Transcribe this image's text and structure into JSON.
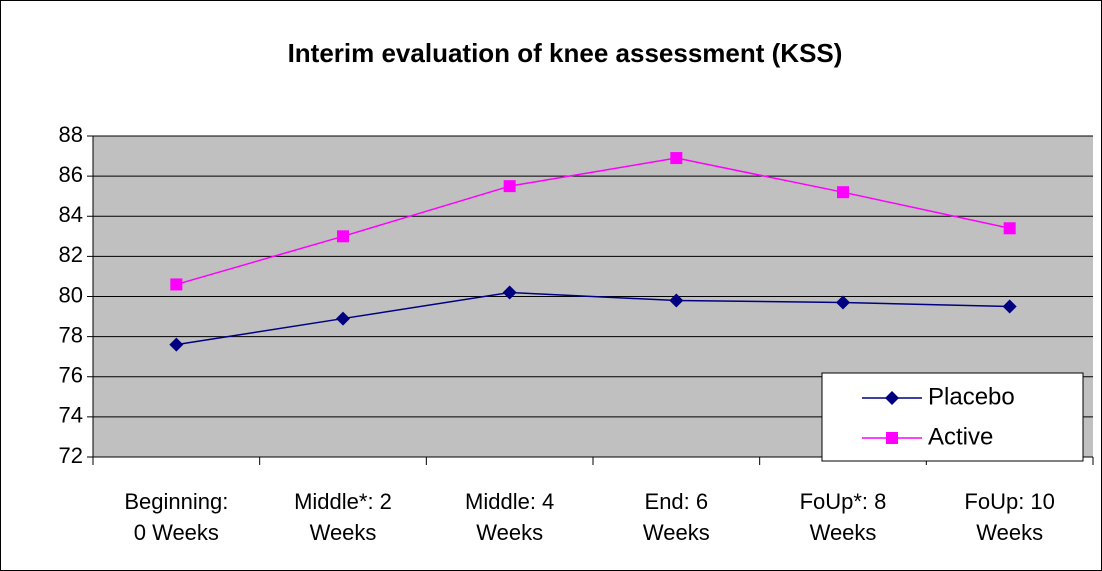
{
  "chart_data": {
    "type": "line",
    "title": "Interim evaluation of knee assessment (KSS)",
    "categories": [
      "Beginning: 0 Weeks",
      "Middle*: 2 Weeks",
      "Middle: 4 Weeks",
      "End: 6 Weeks",
      "FoUp*: 8 Weeks",
      "FoUp: 10 Weeks"
    ],
    "series": [
      {
        "name": "Placebo",
        "color": "#000080",
        "marker": "diamond",
        "values": [
          77.6,
          78.9,
          80.2,
          79.8,
          79.7,
          79.5
        ]
      },
      {
        "name": "Active",
        "color": "#ff00ff",
        "marker": "square",
        "values": [
          80.6,
          83.0,
          85.5,
          86.9,
          85.2,
          83.4
        ]
      }
    ],
    "ylim": [
      72,
      88
    ],
    "yticks": [
      72,
      74,
      76,
      78,
      80,
      82,
      84,
      86,
      88
    ],
    "grid": true,
    "legend": "lower right"
  }
}
